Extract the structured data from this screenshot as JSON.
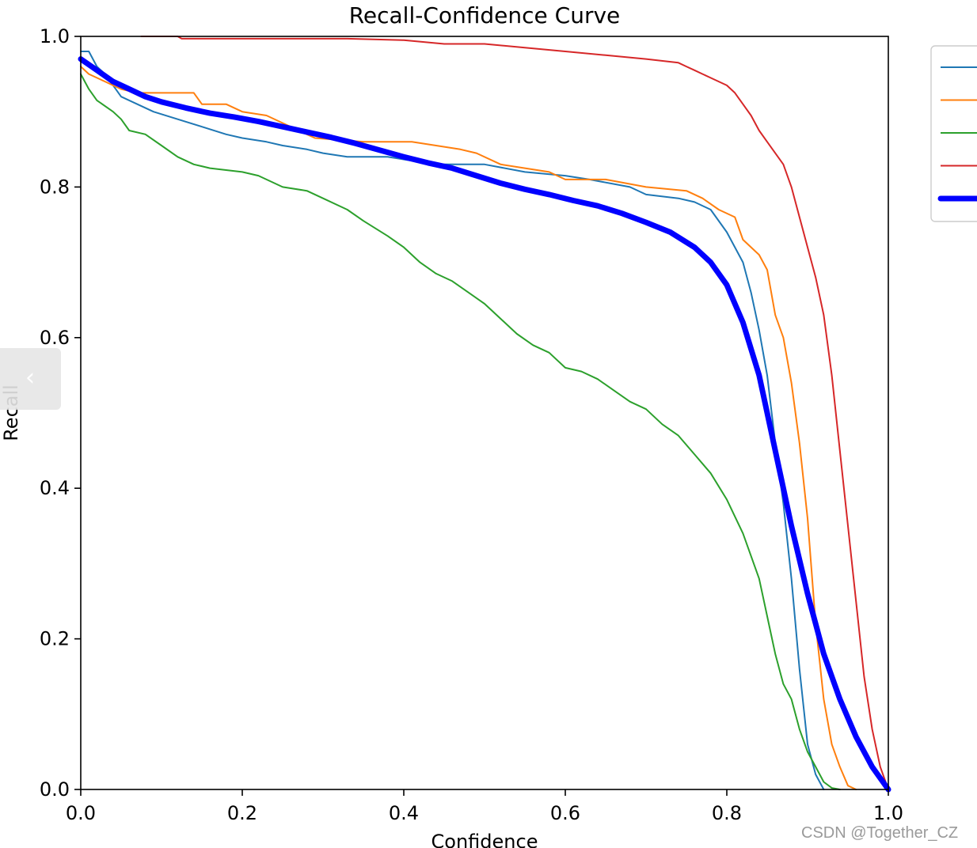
{
  "watermark": "CSDN @Together_CZ",
  "side_tab": {
    "icon": "chevron-left-icon",
    "glyph": "‹"
  },
  "colors": {
    "series_0": "#1f77b4",
    "series_1": "#ff7f0e",
    "series_2": "#2ca02c",
    "series_3": "#d62728",
    "overall": "#0000ff"
  },
  "chart_data": {
    "type": "line",
    "title": "Recall-Confidence Curve",
    "xlabel": "Confidence",
    "ylabel": "Recall",
    "xlim": [
      0,
      1
    ],
    "ylim": [
      0,
      1
    ],
    "xticks": [
      "0.0",
      "0.2",
      "0.4",
      "0.6",
      "0.8",
      "1.0"
    ],
    "yticks": [
      "0.0",
      "0.2",
      "0.4",
      "0.6",
      "0.8",
      "1.0"
    ],
    "grid": false,
    "legend_position": "top-right",
    "series": [
      {
        "color": "#1f77b4",
        "width": "thin",
        "points": [
          [
            0,
            0.98
          ],
          [
            0.01,
            0.98
          ],
          [
            0.02,
            0.96
          ],
          [
            0.03,
            0.95
          ],
          [
            0.05,
            0.92
          ],
          [
            0.07,
            0.91
          ],
          [
            0.09,
            0.9
          ],
          [
            0.12,
            0.89
          ],
          [
            0.15,
            0.88
          ],
          [
            0.18,
            0.87
          ],
          [
            0.2,
            0.865
          ],
          [
            0.23,
            0.86
          ],
          [
            0.25,
            0.855
          ],
          [
            0.28,
            0.85
          ],
          [
            0.3,
            0.845
          ],
          [
            0.33,
            0.84
          ],
          [
            0.38,
            0.84
          ],
          [
            0.41,
            0.835
          ],
          [
            0.43,
            0.83
          ],
          [
            0.5,
            0.83
          ],
          [
            0.55,
            0.82
          ],
          [
            0.6,
            0.815
          ],
          [
            0.63,
            0.81
          ],
          [
            0.68,
            0.8
          ],
          [
            0.7,
            0.79
          ],
          [
            0.74,
            0.785
          ],
          [
            0.76,
            0.78
          ],
          [
            0.78,
            0.77
          ],
          [
            0.8,
            0.74
          ],
          [
            0.82,
            0.7
          ],
          [
            0.83,
            0.66
          ],
          [
            0.84,
            0.61
          ],
          [
            0.85,
            0.55
          ],
          [
            0.86,
            0.46
          ],
          [
            0.87,
            0.38
          ],
          [
            0.88,
            0.28
          ],
          [
            0.89,
            0.16
          ],
          [
            0.9,
            0.06
          ],
          [
            0.91,
            0.02
          ],
          [
            0.92,
            0
          ]
        ]
      },
      {
        "color": "#ff7f0e",
        "width": "thin",
        "points": [
          [
            0,
            0.96
          ],
          [
            0.01,
            0.95
          ],
          [
            0.03,
            0.94
          ],
          [
            0.05,
            0.93
          ],
          [
            0.07,
            0.925
          ],
          [
            0.1,
            0.925
          ],
          [
            0.14,
            0.925
          ],
          [
            0.15,
            0.91
          ],
          [
            0.18,
            0.91
          ],
          [
            0.2,
            0.9
          ],
          [
            0.23,
            0.895
          ],
          [
            0.28,
            0.87
          ],
          [
            0.29,
            0.865
          ],
          [
            0.35,
            0.86
          ],
          [
            0.41,
            0.86
          ],
          [
            0.44,
            0.855
          ],
          [
            0.47,
            0.85
          ],
          [
            0.49,
            0.845
          ],
          [
            0.52,
            0.83
          ],
          [
            0.55,
            0.825
          ],
          [
            0.58,
            0.82
          ],
          [
            0.6,
            0.81
          ],
          [
            0.65,
            0.81
          ],
          [
            0.7,
            0.8
          ],
          [
            0.75,
            0.795
          ],
          [
            0.77,
            0.785
          ],
          [
            0.79,
            0.77
          ],
          [
            0.81,
            0.76
          ],
          [
            0.82,
            0.73
          ],
          [
            0.84,
            0.71
          ],
          [
            0.85,
            0.69
          ],
          [
            0.86,
            0.63
          ],
          [
            0.87,
            0.6
          ],
          [
            0.88,
            0.54
          ],
          [
            0.89,
            0.46
          ],
          [
            0.9,
            0.36
          ],
          [
            0.91,
            0.22
          ],
          [
            0.92,
            0.12
          ],
          [
            0.93,
            0.06
          ],
          [
            0.94,
            0.03
          ],
          [
            0.95,
            0.005
          ],
          [
            0.96,
            0
          ]
        ]
      },
      {
        "color": "#2ca02c",
        "width": "thin",
        "points": [
          [
            0,
            0.95
          ],
          [
            0.01,
            0.93
          ],
          [
            0.02,
            0.915
          ],
          [
            0.04,
            0.9
          ],
          [
            0.05,
            0.89
          ],
          [
            0.06,
            0.875
          ],
          [
            0.08,
            0.87
          ],
          [
            0.1,
            0.855
          ],
          [
            0.12,
            0.84
          ],
          [
            0.14,
            0.83
          ],
          [
            0.16,
            0.825
          ],
          [
            0.2,
            0.82
          ],
          [
            0.22,
            0.815
          ],
          [
            0.25,
            0.8
          ],
          [
            0.28,
            0.795
          ],
          [
            0.3,
            0.785
          ],
          [
            0.33,
            0.77
          ],
          [
            0.35,
            0.755
          ],
          [
            0.38,
            0.735
          ],
          [
            0.4,
            0.72
          ],
          [
            0.42,
            0.7
          ],
          [
            0.44,
            0.685
          ],
          [
            0.46,
            0.675
          ],
          [
            0.48,
            0.66
          ],
          [
            0.5,
            0.645
          ],
          [
            0.52,
            0.625
          ],
          [
            0.54,
            0.605
          ],
          [
            0.56,
            0.59
          ],
          [
            0.58,
            0.58
          ],
          [
            0.6,
            0.56
          ],
          [
            0.62,
            0.555
          ],
          [
            0.64,
            0.545
          ],
          [
            0.66,
            0.53
          ],
          [
            0.68,
            0.515
          ],
          [
            0.7,
            0.505
          ],
          [
            0.72,
            0.485
          ],
          [
            0.74,
            0.47
          ],
          [
            0.76,
            0.445
          ],
          [
            0.78,
            0.42
          ],
          [
            0.8,
            0.385
          ],
          [
            0.82,
            0.34
          ],
          [
            0.84,
            0.28
          ],
          [
            0.85,
            0.23
          ],
          [
            0.86,
            0.18
          ],
          [
            0.87,
            0.14
          ],
          [
            0.88,
            0.12
          ],
          [
            0.89,
            0.08
          ],
          [
            0.9,
            0.05
          ],
          [
            0.91,
            0.03
          ],
          [
            0.92,
            0.01
          ],
          [
            0.93,
            0.002
          ],
          [
            0.94,
            0
          ]
        ]
      },
      {
        "color": "#d62728",
        "width": "thin",
        "points": [
          [
            0.075,
            1.0
          ],
          [
            0.12,
            1.0
          ],
          [
            0.125,
            0.997
          ],
          [
            0.33,
            0.997
          ],
          [
            0.4,
            0.995
          ],
          [
            0.45,
            0.99
          ],
          [
            0.5,
            0.99
          ],
          [
            0.55,
            0.985
          ],
          [
            0.6,
            0.98
          ],
          [
            0.65,
            0.975
          ],
          [
            0.7,
            0.97
          ],
          [
            0.74,
            0.965
          ],
          [
            0.75,
            0.96
          ],
          [
            0.76,
            0.955
          ],
          [
            0.77,
            0.95
          ],
          [
            0.78,
            0.945
          ],
          [
            0.79,
            0.94
          ],
          [
            0.8,
            0.935
          ],
          [
            0.81,
            0.925
          ],
          [
            0.82,
            0.91
          ],
          [
            0.83,
            0.895
          ],
          [
            0.84,
            0.875
          ],
          [
            0.85,
            0.86
          ],
          [
            0.86,
            0.845
          ],
          [
            0.87,
            0.83
          ],
          [
            0.88,
            0.8
          ],
          [
            0.89,
            0.76
          ],
          [
            0.9,
            0.72
          ],
          [
            0.91,
            0.68
          ],
          [
            0.92,
            0.63
          ],
          [
            0.93,
            0.55
          ],
          [
            0.94,
            0.45
          ],
          [
            0.95,
            0.35
          ],
          [
            0.96,
            0.25
          ],
          [
            0.97,
            0.15
          ],
          [
            0.98,
            0.08
          ],
          [
            0.99,
            0.03
          ],
          [
            1.0,
            0
          ]
        ]
      },
      {
        "color": "#0000ff",
        "width": "thick",
        "points": [
          [
            0,
            0.97
          ],
          [
            0.02,
            0.955
          ],
          [
            0.04,
            0.94
          ],
          [
            0.06,
            0.93
          ],
          [
            0.08,
            0.92
          ],
          [
            0.1,
            0.913
          ],
          [
            0.13,
            0.905
          ],
          [
            0.16,
            0.898
          ],
          [
            0.19,
            0.893
          ],
          [
            0.22,
            0.887
          ],
          [
            0.25,
            0.88
          ],
          [
            0.28,
            0.873
          ],
          [
            0.31,
            0.866
          ],
          [
            0.34,
            0.858
          ],
          [
            0.37,
            0.849
          ],
          [
            0.4,
            0.84
          ],
          [
            0.43,
            0.832
          ],
          [
            0.46,
            0.825
          ],
          [
            0.49,
            0.815
          ],
          [
            0.52,
            0.805
          ],
          [
            0.55,
            0.797
          ],
          [
            0.58,
            0.79
          ],
          [
            0.61,
            0.782
          ],
          [
            0.64,
            0.775
          ],
          [
            0.67,
            0.765
          ],
          [
            0.7,
            0.753
          ],
          [
            0.73,
            0.74
          ],
          [
            0.76,
            0.72
          ],
          [
            0.78,
            0.7
          ],
          [
            0.8,
            0.67
          ],
          [
            0.82,
            0.62
          ],
          [
            0.84,
            0.55
          ],
          [
            0.86,
            0.45
          ],
          [
            0.88,
            0.35
          ],
          [
            0.9,
            0.26
          ],
          [
            0.92,
            0.18
          ],
          [
            0.94,
            0.12
          ],
          [
            0.96,
            0.07
          ],
          [
            0.98,
            0.03
          ],
          [
            1.0,
            0
          ]
        ]
      }
    ]
  }
}
